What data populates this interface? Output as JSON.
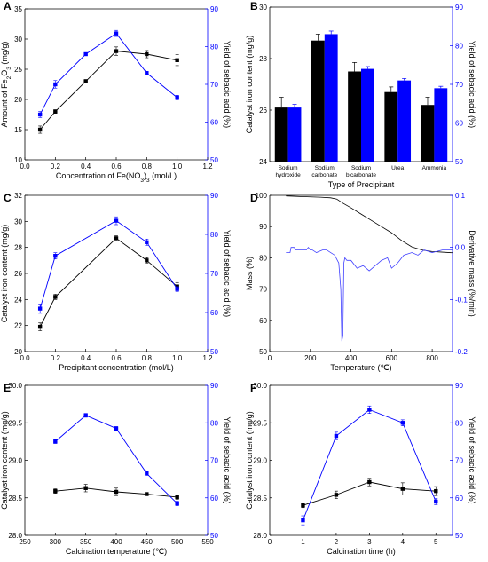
{
  "chart_data": [
    {
      "panel": "A",
      "type": "line",
      "xlabel": "Concentration of Fe(NO3)3 (mol/L)",
      "ylabel_left": "Amount of Fe2O3 (mg/g)",
      "ylabel_right": "Yield of sebacic acid (%)",
      "xlim": [
        0.0,
        1.2
      ],
      "xticks": [
        0.0,
        0.2,
        0.4,
        0.6,
        0.8,
        1.0,
        1.2
      ],
      "ylim_left": [
        10,
        35
      ],
      "yticks_left": [
        10,
        15,
        20,
        25,
        30,
        35
      ],
      "ylim_right": [
        50,
        90
      ],
      "yticks_right": [
        50,
        60,
        70,
        80,
        90
      ],
      "x": [
        0.1,
        0.2,
        0.4,
        0.6,
        0.8,
        1.0
      ],
      "series": [
        {
          "axis": "left",
          "color": "#000000",
          "marker": "square",
          "values": [
            15.0,
            18.0,
            23.0,
            28.0,
            27.5,
            26.5
          ],
          "errors": [
            0.6,
            0.3,
            0.3,
            0.7,
            0.6,
            0.9
          ]
        },
        {
          "axis": "right",
          "color": "#0000ff",
          "marker": "square",
          "values": [
            62.0,
            70.0,
            78.0,
            83.5,
            73.0,
            66.5
          ],
          "errors": [
            0.8,
            1.0,
            0.4,
            0.8,
            0.4,
            0.6
          ]
        }
      ]
    },
    {
      "panel": "B",
      "type": "bar",
      "xlabel": "Type of Precipitant",
      "ylabel_left": "Catalyst iron content (mg/g)",
      "ylabel_right": "Yield of sebacic acid (%)",
      "categories": [
        [
          "Sodium",
          "hydroxide"
        ],
        [
          "Sodium",
          "carbonate"
        ],
        [
          "Sodium",
          "bicarbonate"
        ],
        [
          "Urea"
        ],
        [
          "Ammonia"
        ]
      ],
      "ylim_left": [
        24,
        30
      ],
      "yticks_left": [
        24,
        26,
        28,
        30
      ],
      "ylim_right": [
        50,
        90
      ],
      "yticks_right": [
        50,
        60,
        70,
        80,
        90
      ],
      "series": [
        {
          "axis": "left",
          "color": "#000000",
          "values": [
            26.1,
            28.7,
            27.5,
            26.7,
            26.2
          ],
          "errors": [
            0.4,
            0.25,
            0.35,
            0.2,
            0.3
          ]
        },
        {
          "axis": "right",
          "color": "#0000ff",
          "values": [
            64.0,
            83.0,
            74.0,
            71.0,
            69.0
          ],
          "errors": [
            0.8,
            0.8,
            0.6,
            0.5,
            0.5
          ]
        }
      ]
    },
    {
      "panel": "C",
      "type": "line",
      "xlabel": "Precipitant concentration (mol/L)",
      "ylabel_left": "Catalyst iron content (mg/g)",
      "ylabel_right": "Yield of sebacic acid (%)",
      "xlim": [
        0.0,
        1.2
      ],
      "xticks": [
        0.0,
        0.2,
        0.4,
        0.6,
        0.8,
        1.0,
        1.2
      ],
      "ylim_left": [
        20,
        32
      ],
      "yticks_left": [
        20,
        22,
        24,
        26,
        28,
        30,
        32
      ],
      "ylim_right": [
        50,
        90
      ],
      "yticks_right": [
        50,
        60,
        70,
        80,
        90
      ],
      "x": [
        0.1,
        0.2,
        0.6,
        0.8,
        1.0
      ],
      "series": [
        {
          "axis": "left",
          "color": "#000000",
          "marker": "square",
          "values": [
            21.9,
            24.2,
            28.7,
            27.0,
            25.0
          ],
          "errors": [
            0.3,
            0.2,
            0.2,
            0.2,
            0.3
          ]
        },
        {
          "axis": "right",
          "color": "#0000ff",
          "marker": "square",
          "values": [
            61.0,
            74.5,
            83.5,
            78.0,
            66.0
          ],
          "errors": [
            1.2,
            0.8,
            1.0,
            0.8,
            0.6
          ]
        }
      ]
    },
    {
      "panel": "D",
      "type": "line",
      "xlabel": "Temperature (℃)",
      "ylabel_left": "Mass (%)",
      "ylabel_right": "Derivative mass (%/min)",
      "xlim": [
        0,
        900
      ],
      "xticks": [
        0,
        200,
        400,
        600,
        800
      ],
      "ylim_left": [
        50,
        100
      ],
      "yticks_left": [
        50,
        60,
        70,
        80,
        90,
        100
      ],
      "ylim_right": [
        -0.2,
        0.1
      ],
      "yticks_right": [
        -0.2,
        -0.1,
        0.0,
        0.1
      ],
      "series": [
        {
          "axis": "left",
          "color": "#000000",
          "x": [
            80,
            150,
            200,
            250,
            300,
            330,
            360,
            400,
            450,
            500,
            550,
            600,
            650,
            700,
            750,
            800,
            850,
            900
          ],
          "values": [
            99.8,
            99.6,
            99.5,
            99.4,
            99.2,
            98.8,
            97.5,
            96.0,
            94.0,
            92.0,
            90.0,
            88.0,
            85.5,
            83.5,
            82.5,
            82.0,
            81.8,
            81.6
          ]
        },
        {
          "axis": "right",
          "color": "#4040ff",
          "x": [
            80,
            90,
            100,
            105,
            120,
            130,
            150,
            180,
            190,
            200,
            210,
            230,
            260,
            280,
            300,
            320,
            340,
            350,
            355,
            360,
            365,
            370,
            380,
            400,
            430,
            460,
            490,
            520,
            550,
            580,
            600,
            630,
            660,
            700,
            730,
            760,
            800,
            850,
            900
          ],
          "values": [
            -0.01,
            -0.01,
            -0.01,
            0.0,
            0.0,
            -0.005,
            -0.005,
            -0.005,
            0.0,
            -0.005,
            -0.005,
            -0.01,
            -0.005,
            -0.005,
            -0.01,
            -0.015,
            -0.03,
            -0.08,
            -0.18,
            -0.17,
            -0.03,
            -0.02,
            -0.025,
            -0.025,
            -0.04,
            -0.035,
            -0.045,
            -0.035,
            -0.025,
            -0.02,
            -0.04,
            -0.03,
            -0.015,
            -0.01,
            -0.015,
            -0.005,
            -0.01,
            -0.005,
            -0.005
          ]
        }
      ]
    },
    {
      "panel": "E",
      "type": "line",
      "xlabel": "Calcination temperature (℃)",
      "ylabel_left": "Catalyst iron content (mg/g)",
      "ylabel_right": "Yield of sebacic acid (%)",
      "xlim": [
        250,
        550
      ],
      "xticks": [
        250,
        300,
        350,
        400,
        450,
        500,
        550
      ],
      "ylim_left": [
        28.0,
        30.0
      ],
      "yticks_left": [
        28.0,
        28.5,
        29.0,
        29.5,
        30.0
      ],
      "ylim_right": [
        50,
        90
      ],
      "yticks_right": [
        50,
        60,
        70,
        80,
        90
      ],
      "x": [
        300,
        350,
        400,
        450,
        500
      ],
      "series": [
        {
          "axis": "left",
          "color": "#000000",
          "marker": "square",
          "values": [
            28.59,
            28.63,
            28.58,
            28.55,
            28.51
          ],
          "errors": [
            0.03,
            0.05,
            0.05,
            0.02,
            0.03
          ]
        },
        {
          "axis": "right",
          "color": "#0000ff",
          "marker": "square",
          "values": [
            75.0,
            82.0,
            78.5,
            66.5,
            58.5
          ],
          "errors": [
            0.5,
            0.5,
            0.5,
            0.5,
            0.6
          ]
        }
      ]
    },
    {
      "panel": "F",
      "type": "line",
      "xlabel": "Calcination time (h)",
      "ylabel_left": "Catalyst iron content (mg/g)",
      "ylabel_right": "Yield of sebacic acid (%)",
      "xlim": [
        0,
        5.5
      ],
      "xticks": [
        0,
        1,
        2,
        3,
        4,
        5
      ],
      "ylim_left": [
        28.0,
        30.0
      ],
      "yticks_left": [
        28.0,
        28.5,
        29.0,
        29.5,
        30.0
      ],
      "ylim_right": [
        50,
        90
      ],
      "yticks_right": [
        50,
        60,
        70,
        80,
        90
      ],
      "x": [
        1,
        2,
        3,
        4,
        5
      ],
      "series": [
        {
          "axis": "left",
          "color": "#000000",
          "marker": "square",
          "values": [
            28.4,
            28.54,
            28.71,
            28.62,
            28.59
          ],
          "errors": [
            0.03,
            0.05,
            0.05,
            0.08,
            0.06
          ]
        },
        {
          "axis": "right",
          "color": "#0000ff",
          "marker": "square",
          "values": [
            54.0,
            76.5,
            83.5,
            80.0,
            59.0
          ],
          "errors": [
            1.2,
            1.0,
            1.0,
            0.8,
            0.8
          ]
        }
      ]
    }
  ]
}
